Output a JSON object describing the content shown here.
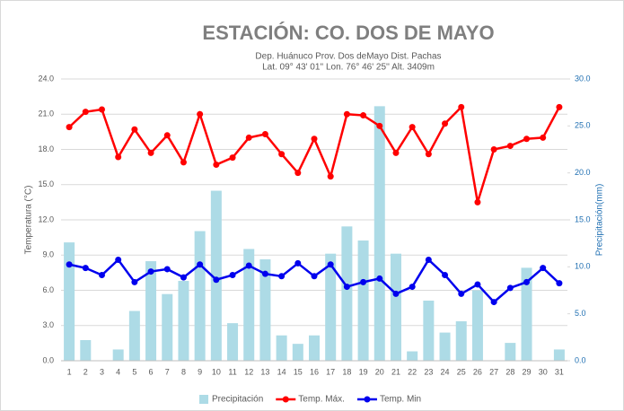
{
  "chart_data": {
    "type": "bar_line_combo",
    "title": "ESTACIÓN: CO. DOS DE MAYO",
    "subtitle": [
      "Dep. Huánuco Prov. Dos deMayo Dist. Pachas",
      "Lat. 09° 43' 01'' Lon. 76° 46' 25'' Alt. 3409m"
    ],
    "y_label": "Temperatura (°C)",
    "y2_label": "Precipitación(mm)",
    "categories": [
      "1",
      "2",
      "3",
      "4",
      "5",
      "6",
      "7",
      "8",
      "9",
      "10",
      "11",
      "12",
      "13",
      "14",
      "15",
      "16",
      "17",
      "18",
      "19",
      "20",
      "21",
      "22",
      "23",
      "24",
      "25",
      "26",
      "27",
      "28",
      "29",
      "30",
      "31"
    ],
    "ylim": [
      0,
      24
    ],
    "yticks": [
      {
        "value": 0,
        "label": "0.0"
      },
      {
        "value": 3,
        "label": "3.0"
      },
      {
        "value": 6,
        "label": "6.0"
      },
      {
        "value": 9,
        "label": "9.0"
      },
      {
        "value": 12,
        "label": "12.0"
      },
      {
        "value": 15,
        "label": "15.0"
      },
      {
        "value": 18,
        "label": "18.0"
      },
      {
        "value": 21,
        "label": "21.0"
      },
      {
        "value": 24,
        "label": "24.0"
      }
    ],
    "y2lim": [
      0,
      30
    ],
    "y2ticks": [
      {
        "value": 0,
        "label": "0.0"
      },
      {
        "value": 5,
        "label": "5.0"
      },
      {
        "value": 10,
        "label": "10.0"
      },
      {
        "value": 15,
        "label": "15.0"
      },
      {
        "value": 20,
        "label": "20.0"
      },
      {
        "value": 25,
        "label": "25.0"
      },
      {
        "value": 30,
        "label": "30.0"
      }
    ],
    "grid": true,
    "legend": "bottom",
    "series": [
      {
        "name": "Precipitación",
        "type": "bar",
        "axis": "y2",
        "color": "#addbe6",
        "values": [
          12.6,
          2.2,
          0,
          1.2,
          5.3,
          10.6,
          7.1,
          8.5,
          13.8,
          18.1,
          4.0,
          11.9,
          10.8,
          2.7,
          1.8,
          2.7,
          11.4,
          14.3,
          12.8,
          27.1,
          11.4,
          1.0,
          6.4,
          3.0,
          4.2,
          7.5,
          0,
          1.9,
          9.9,
          0,
          1.2
        ]
      },
      {
        "name": "Temp. Máx.",
        "type": "line",
        "color": "#ff0000",
        "values": [
          19.9,
          21.2,
          21.4,
          17.35,
          19.7,
          17.7,
          19.2,
          16.9,
          21.0,
          16.7,
          17.3,
          19.0,
          19.3,
          17.6,
          16.0,
          18.9,
          15.7,
          21.0,
          20.9,
          20.0,
          17.7,
          19.9,
          17.6,
          20.2,
          21.6,
          13.5,
          18.0,
          18.3,
          18.9,
          19.0,
          21.6
        ]
      },
      {
        "name": "Temp. Min",
        "type": "line",
        "color": "#0000ee",
        "values": [
          8.2,
          7.9,
          7.3,
          8.6,
          6.7,
          7.6,
          7.8,
          7.1,
          8.2,
          6.9,
          7.3,
          8.1,
          7.4,
          7.2,
          8.3,
          7.2,
          8.2,
          6.3,
          6.7,
          7.0,
          5.7,
          6.3,
          8.6,
          7.3,
          5.7,
          6.5,
          5.0,
          6.2,
          6.7,
          7.9,
          6.6
        ]
      }
    ]
  }
}
